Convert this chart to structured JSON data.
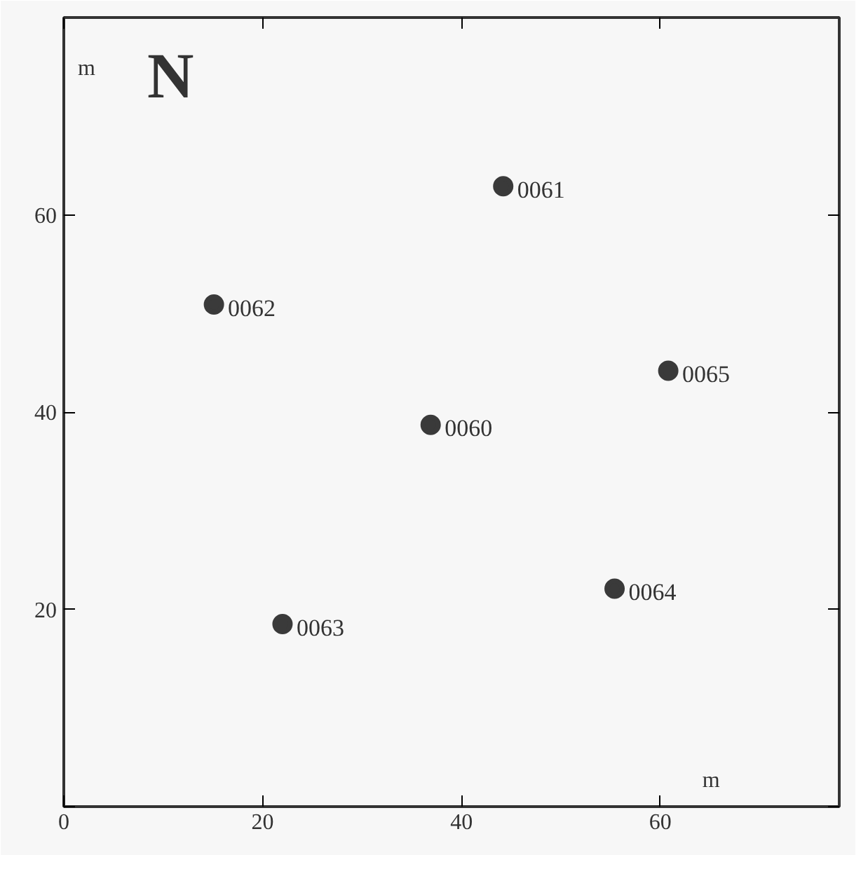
{
  "chart_data": {
    "type": "scatter",
    "xlabel": "m",
    "ylabel": "m",
    "xlim": [
      0,
      78
    ],
    "ylim": [
      0,
      80
    ],
    "xticks": [
      {
        "value": 0,
        "label": "0"
      },
      20,
      40,
      60
    ],
    "yticks": [
      {
        "value": 0,
        "label": null
      },
      20,
      40,
      60
    ],
    "marker": "circle",
    "grid": false,
    "series": [
      {
        "color": "#3a3a3a",
        "x": [
          36.9,
          15.1,
          44.2,
          60.8,
          55.4,
          22.0
        ],
        "values": [
          38.7,
          50.9,
          62.9,
          44.2,
          22.1,
          18.5
        ]
      }
    ],
    "annotations": [
      "N",
      {
        "text": "0060",
        "x": 36.9,
        "y": 38.7
      },
      {
        "text": "0061",
        "x": 44.2,
        "y": 62.9
      },
      {
        "text": "0062",
        "x": 15.1,
        "y": 50.9
      },
      {
        "text": "0063",
        "x": 22.0,
        "y": 18.5
      },
      {
        "text": "0064",
        "x": 55.4,
        "y": 22.1
      },
      {
        "text": "0065",
        "x": 60.8,
        "y": 44.2
      }
    ]
  }
}
